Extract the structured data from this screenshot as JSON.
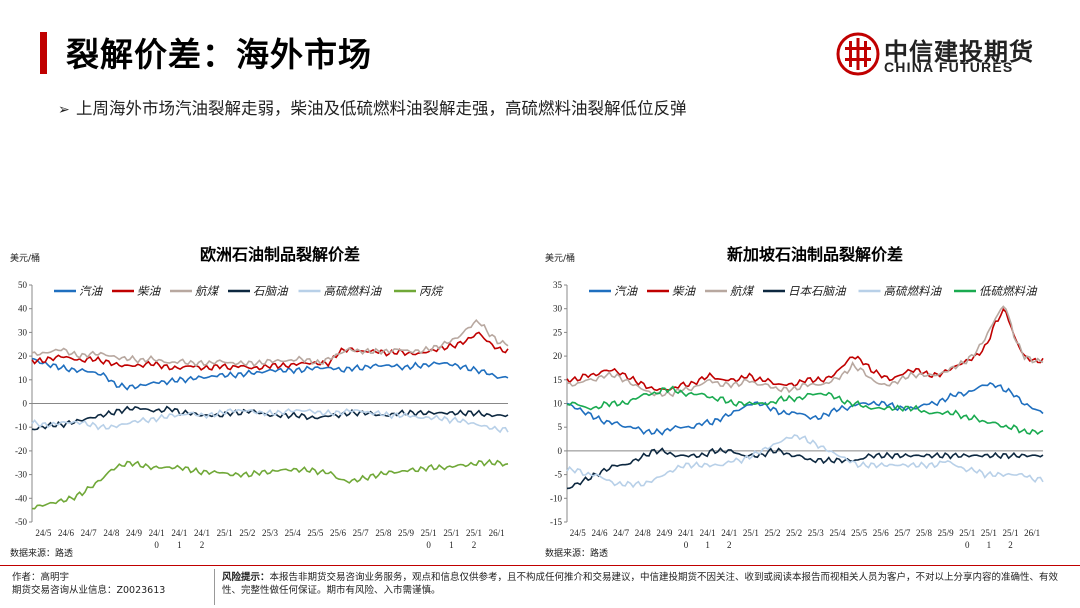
{
  "slide": {
    "title": "裂解价差：海外市场",
    "bullet": "上周海外市场汽油裂解走弱，柴油及低硫燃料油裂解走强，高硫燃料油裂解低位反弹"
  },
  "logo": {
    "name_cn": "中信建投期货",
    "name_en": "CHINA FUTURES",
    "brand_color": "#c00000",
    "icon": "china-futures-logo-icon"
  },
  "footer": {
    "author": "作者：高明宇",
    "license": "期货交易咨询从业信息：Z0023613",
    "risk_label": "风险提示：",
    "risk_text": "本报告非期货交易咨询业务服务，观点和信息仅供参考，且不构成任何推介和交易建议，中信建投期货不因关注、收到或阅读本报告而视相关人员为客户，不对以上分享内容的准确性、有效性、完整性做任何保证。期市有风险、入市需谨慎。"
  },
  "chart_data": [
    {
      "type": "line",
      "title": "欧洲石油制品裂解价差",
      "unit_label": "美元/桶",
      "source": "数据来源：路透",
      "ylim": [
        -50,
        50
      ],
      "yticks": [
        -50,
        -40,
        -30,
        -20,
        -10,
        0,
        10,
        20,
        30,
        40,
        50
      ],
      "xtick_labels": [
        "24/5",
        "24/6",
        "24/7",
        "24/8",
        "24/9",
        "24/1\n0",
        "24/1\n1",
        "24/1\n2",
        "25/1",
        "25/2",
        "25/3",
        "25/4",
        "25/5",
        "25/6",
        "25/7",
        "25/8",
        "25/9",
        "25/1\n0",
        "25/1\n1",
        "25/1\n2",
        "26/1"
      ],
      "legend_position": "top",
      "series": [
        {
          "name": "汽油",
          "color": "#1f6fbf",
          "values": [
            19,
            17,
            16,
            15,
            14,
            14,
            13,
            12,
            8,
            7,
            7,
            8,
            9,
            9,
            10,
            10,
            11,
            11,
            12,
            12,
            12,
            13,
            13,
            14,
            14,
            14,
            14,
            15,
            15,
            15,
            14,
            15,
            15,
            16,
            16,
            16,
            15,
            16,
            16,
            17,
            17,
            16,
            15,
            14,
            13,
            11,
            11
          ]
        },
        {
          "name": "柴油",
          "color": "#c00000",
          "values": [
            18,
            18,
            19,
            20,
            19,
            18,
            19,
            18,
            17,
            16,
            16,
            16,
            17,
            16,
            15,
            15,
            16,
            15,
            15,
            16,
            15,
            16,
            15,
            15,
            16,
            16,
            16,
            17,
            17,
            17,
            17,
            22,
            23,
            22,
            22,
            22,
            21,
            22,
            21,
            21,
            22,
            23,
            24,
            25,
            27,
            30,
            26,
            23,
            22
          ]
        },
        {
          "name": "航煤",
          "color": "#b8a8a0",
          "values": [
            21,
            21,
            22,
            23,
            21,
            20,
            21,
            21,
            20,
            19,
            19,
            18,
            19,
            18,
            17,
            18,
            17,
            17,
            17,
            18,
            17,
            17,
            17,
            17,
            18,
            18,
            18,
            19,
            18,
            17,
            19,
            21,
            23,
            22,
            22,
            22,
            22,
            23,
            22,
            22,
            23,
            24,
            26,
            28,
            32,
            35,
            30,
            26,
            25
          ]
        },
        {
          "name": "石脑油",
          "color": "#0d2840",
          "values": [
            -11,
            -10,
            -9,
            -9,
            -8,
            -7,
            -6,
            -5,
            -4,
            -3,
            -2,
            -2,
            -3,
            -3,
            -2,
            -4,
            -4,
            -5,
            -5,
            -5,
            -4,
            -4,
            -3,
            -4,
            -5,
            -5,
            -5,
            -5,
            -6,
            -6,
            -5,
            -5,
            -4,
            -4,
            -4,
            -5,
            -5,
            -4,
            -4,
            -4,
            -4,
            -4,
            -4,
            -4,
            -4,
            -4,
            -5,
            -5,
            -5
          ]
        },
        {
          "name": "高硫燃料油",
          "color": "#b8d0e8",
          "values": [
            -8,
            -9,
            -9,
            -8,
            -8,
            -8,
            -9,
            -10,
            -10,
            -9,
            -8,
            -7,
            -7,
            -6,
            -5,
            -5,
            -4,
            -5,
            -5,
            -4,
            -3,
            -3,
            -3,
            -4,
            -4,
            -4,
            -3,
            -3,
            -3,
            -4,
            -4,
            -4,
            -3,
            -3,
            -4,
            -4,
            -5,
            -5,
            -5,
            -6,
            -6,
            -6,
            -7,
            -7,
            -8,
            -9,
            -10,
            -11,
            -11
          ]
        },
        {
          "name": "丙烷",
          "color": "#70a838",
          "values": [
            -44,
            -43,
            -42,
            -41,
            -40,
            -38,
            -35,
            -32,
            -28,
            -26,
            -25,
            -26,
            -27,
            -27,
            -27,
            -27,
            -28,
            -29,
            -29,
            -29,
            -30,
            -30,
            -30,
            -29,
            -29,
            -28,
            -28,
            -28,
            -28,
            -29,
            -29,
            -32,
            -33,
            -32,
            -31,
            -30,
            -29,
            -29,
            -28,
            -28,
            -27,
            -27,
            -27,
            -26,
            -26,
            -25,
            -25,
            -25,
            -26
          ]
        }
      ]
    },
    {
      "type": "line",
      "title": "新加坡石油制品裂解价差",
      "unit_label": "美元/桶",
      "source": "数据来源：路透",
      "ylim": [
        -15,
        35
      ],
      "yticks": [
        -15,
        -10,
        -5,
        0,
        5,
        10,
        15,
        20,
        25,
        30,
        35
      ],
      "xtick_labels": [
        "24/5",
        "24/6",
        "24/7",
        "24/8",
        "24/9",
        "24/1\n0",
        "24/1\n1",
        "24/1\n2",
        "25/1",
        "25/2",
        "25/2",
        "25/3",
        "25/4",
        "25/5",
        "25/6",
        "25/7",
        "25/8",
        "25/9",
        "25/1\n0",
        "25/1\n1",
        "25/1\n2",
        "26/1"
      ],
      "legend_position": "top",
      "series": [
        {
          "name": "汽油",
          "color": "#1f6fbf",
          "values": [
            10,
            9,
            8,
            7,
            6,
            6,
            5,
            5,
            4,
            4,
            4,
            5,
            5,
            5,
            6,
            6,
            7,
            8,
            9,
            10,
            10,
            9,
            8,
            8,
            8,
            7,
            7,
            8,
            9,
            9,
            10,
            10,
            10,
            10,
            9,
            9,
            9,
            10,
            10,
            11,
            12,
            12,
            13,
            14,
            14,
            13,
            12,
            10,
            9,
            8
          ]
        },
        {
          "name": "柴油",
          "color": "#c00000",
          "values": [
            15,
            15,
            16,
            16,
            17,
            17,
            16,
            15,
            14,
            13,
            13,
            13,
            14,
            14,
            15,
            16,
            15,
            15,
            15,
            16,
            15,
            15,
            14,
            14,
            14,
            15,
            15,
            15,
            16,
            18,
            20,
            19,
            17,
            16,
            15,
            16,
            17,
            17,
            16,
            16,
            17,
            18,
            19,
            20,
            22,
            27,
            30,
            24,
            20,
            19,
            19
          ]
        },
        {
          "name": "航煤",
          "color": "#b8a8a0",
          "values": [
            14,
            14,
            15,
            15,
            16,
            16,
            15,
            14,
            13,
            12,
            12,
            12,
            13,
            13,
            14,
            15,
            14,
            14,
            14,
            15,
            14,
            14,
            13,
            13,
            13,
            14,
            14,
            14,
            15,
            16,
            18,
            17,
            15,
            14,
            14,
            15,
            16,
            16,
            16,
            16,
            17,
            18,
            19,
            21,
            24,
            28,
            31,
            24,
            20,
            19,
            19
          ]
        },
        {
          "name": "日本石脑油",
          "color": "#0d2840",
          "values": [
            -8,
            -7,
            -6,
            -5,
            -4,
            -3,
            -3,
            -2,
            -1,
            0,
            0,
            -1,
            -1,
            -1,
            -1,
            0,
            0,
            0,
            -1,
            -1,
            -1,
            0,
            0,
            -1,
            -1,
            -2,
            -2,
            -2,
            -2,
            -2,
            -2,
            -1,
            -1,
            -1,
            -1,
            -1,
            -1,
            -1,
            -1,
            -1,
            -1,
            -1,
            -1,
            -1,
            -1,
            -1,
            -1,
            -1,
            -1,
            -1
          ]
        },
        {
          "name": "高硫燃料油",
          "color": "#b8d0e8",
          "values": [
            -4,
            -4,
            -5,
            -5,
            -6,
            -7,
            -7,
            -7,
            -7,
            -6,
            -5,
            -4,
            -3,
            -3,
            -3,
            -3,
            -3,
            -2,
            -2,
            -1,
            0,
            1,
            2,
            3,
            3,
            2,
            1,
            0,
            -1,
            -2,
            -3,
            -3,
            -3,
            -3,
            -3,
            -3,
            -3,
            -3,
            -3,
            -2,
            -3,
            -4,
            -4,
            -5,
            -5,
            -5,
            -5,
            -5,
            -6,
            -6
          ]
        },
        {
          "name": "低硫燃料油",
          "color": "#1aaa50",
          "values": [
            10,
            10,
            9,
            9,
            10,
            10,
            10,
            11,
            12,
            12,
            13,
            13,
            12,
            12,
            12,
            11,
            11,
            10,
            10,
            10,
            10,
            10,
            11,
            11,
            11,
            12,
            12,
            12,
            11,
            10,
            10,
            9,
            9,
            9,
            9,
            9,
            9,
            8,
            8,
            8,
            8,
            7,
            7,
            6,
            6,
            5,
            5,
            4,
            4,
            4
          ]
        }
      ]
    }
  ]
}
